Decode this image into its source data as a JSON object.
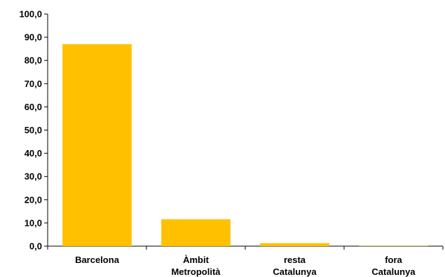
{
  "chart_data": {
    "type": "bar",
    "categories": [
      [
        "Barcelona"
      ],
      [
        "Àmbit",
        "Metropolità"
      ],
      [
        "resta",
        "Catalunya"
      ],
      [
        "fora",
        "Catalunya"
      ]
    ],
    "values": [
      87.0,
      11.6,
      1.3,
      0.1
    ],
    "ylim": [
      0,
      100
    ],
    "yticks": [
      "0,0",
      "10,0",
      "20,0",
      "30,0",
      "40,0",
      "50,0",
      "60,0",
      "70,0",
      "80,0",
      "90,0",
      "100,0"
    ],
    "title": "",
    "xlabel": "",
    "ylabel": "",
    "grid": false,
    "bar_color": "#FFC000",
    "axis_color": "#000000"
  }
}
